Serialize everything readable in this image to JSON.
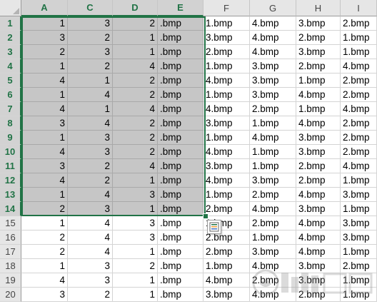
{
  "columns": [
    "A",
    "C",
    "D",
    "E",
    "F",
    "G",
    "H",
    "I"
  ],
  "selected_columns": [
    "A",
    "C",
    "D",
    "E"
  ],
  "rows": [
    {
      "n": "1",
      "values": [
        "1",
        "3",
        "2",
        ".bmp",
        "1.bmp",
        "4.bmp",
        "3.bmp",
        "2.bmp"
      ]
    },
    {
      "n": "2",
      "values": [
        "3",
        "2",
        "1",
        ".bmp",
        "3.bmp",
        "4.bmp",
        "2.bmp",
        "1.bmp"
      ]
    },
    {
      "n": "3",
      "values": [
        "2",
        "3",
        "1",
        ".bmp",
        "2.bmp",
        "4.bmp",
        "3.bmp",
        "1.bmp"
      ]
    },
    {
      "n": "4",
      "values": [
        "1",
        "2",
        "4",
        ".bmp",
        "1.bmp",
        "3.bmp",
        "2.bmp",
        "4.bmp"
      ]
    },
    {
      "n": "5",
      "values": [
        "4",
        "1",
        "2",
        ".bmp",
        "4.bmp",
        "3.bmp",
        "1.bmp",
        "2.bmp"
      ]
    },
    {
      "n": "6",
      "values": [
        "1",
        "4",
        "2",
        ".bmp",
        "1.bmp",
        "3.bmp",
        "4.bmp",
        "2.bmp"
      ]
    },
    {
      "n": "7",
      "values": [
        "4",
        "1",
        "4",
        ".bmp",
        "4.bmp",
        "2.bmp",
        "1.bmp",
        "4.bmp"
      ]
    },
    {
      "n": "8",
      "values": [
        "3",
        "4",
        "2",
        ".bmp",
        "3.bmp",
        "1.bmp",
        "4.bmp",
        "2.bmp"
      ]
    },
    {
      "n": "9",
      "values": [
        "1",
        "3",
        "2",
        ".bmp",
        "1.bmp",
        "4.bmp",
        "3.bmp",
        "2.bmp"
      ]
    },
    {
      "n": "10",
      "values": [
        "4",
        "3",
        "2",
        ".bmp",
        "4.bmp",
        "1.bmp",
        "3.bmp",
        "2.bmp"
      ]
    },
    {
      "n": "11",
      "values": [
        "3",
        "2",
        "4",
        ".bmp",
        "3.bmp",
        "1.bmp",
        "2.bmp",
        "4.bmp"
      ]
    },
    {
      "n": "12",
      "values": [
        "4",
        "2",
        "1",
        ".bmp",
        "4.bmp",
        "3.bmp",
        "2.bmp",
        "1.bmp"
      ]
    },
    {
      "n": "13",
      "values": [
        "1",
        "4",
        "3",
        ".bmp",
        "1.bmp",
        "2.bmp",
        "4.bmp",
        "3.bmp"
      ]
    },
    {
      "n": "14",
      "values": [
        "2",
        "3",
        "1",
        ".bmp",
        "2.bmp",
        "4.bmp",
        "3.bmp",
        "1.bmp"
      ]
    },
    {
      "n": "15",
      "values": [
        "1",
        "4",
        "3",
        ".bmp",
        "1.bmp",
        "2.bmp",
        "4.bmp",
        "3.bmp"
      ]
    },
    {
      "n": "16",
      "values": [
        "2",
        "4",
        "3",
        ".bmp",
        "2.bmp",
        "1.bmp",
        "4.bmp",
        "3.bmp"
      ]
    },
    {
      "n": "17",
      "values": [
        "2",
        "4",
        "1",
        ".bmp",
        "2.bmp",
        "3.bmp",
        "4.bmp",
        "1.bmp"
      ]
    },
    {
      "n": "18",
      "values": [
        "1",
        "3",
        "2",
        ".bmp",
        "1.bmp",
        "4.bmp",
        "3.bmp",
        "2.bmp"
      ]
    },
    {
      "n": "19",
      "values": [
        "4",
        "3",
        "1",
        ".bmp",
        "4.bmp",
        "2.bmp",
        "3.bmp",
        "1.bmp"
      ]
    },
    {
      "n": "20",
      "values": [
        "3",
        "2",
        "1",
        ".bmp",
        "3.bmp",
        "4.bmp",
        "2.bmp",
        "1.bmp"
      ]
    }
  ],
  "selected_rows": [
    "1",
    "2",
    "3",
    "4",
    "5",
    "6",
    "7",
    "8",
    "9",
    "10",
    "11",
    "12",
    "13",
    "14"
  ],
  "colors": {
    "accent": "#217346",
    "selection_fill": "#c6c6c6",
    "header_bg": "#e6e6e6",
    "gridline": "#d4d4d4"
  },
  "icons": {
    "quick_analysis": "quick-analysis-icon",
    "watermark": "baidu-jingyan-watermark"
  }
}
